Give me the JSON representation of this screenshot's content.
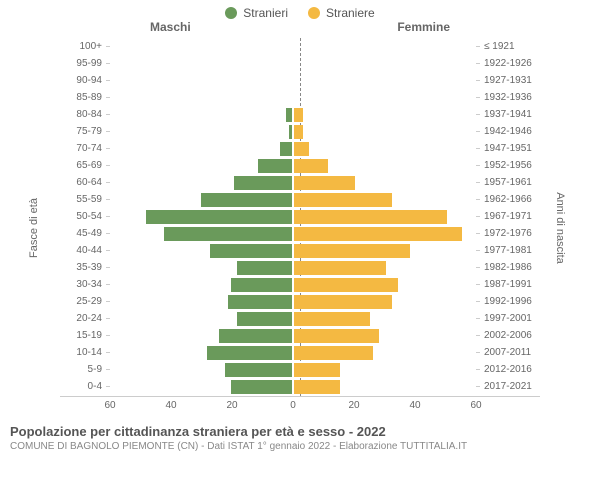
{
  "chart": {
    "type": "population-pyramid",
    "legend": {
      "male": {
        "label": "Stranieri",
        "color": "#6a9a5b"
      },
      "female": {
        "label": "Straniere",
        "color": "#f4b942"
      }
    },
    "column_headers": {
      "left": "Maschi",
      "right": "Femmine"
    },
    "y_label_left": "Fasce di età",
    "y_label_right": "Anni di nascita",
    "x_ticks": [
      60,
      40,
      20,
      0,
      20,
      40,
      60
    ],
    "x_max": 60,
    "bar_outline": "#ffffff",
    "background_color": "#ffffff",
    "center_line_color": "#888888",
    "axis_color": "#cccccc",
    "label_fontsize": 10,
    "tick_label_color": "#666666",
    "rows": [
      {
        "age": "100+",
        "birth": "≤ 1921",
        "m": 0,
        "f": 0
      },
      {
        "age": "95-99",
        "birth": "1922-1926",
        "m": 0,
        "f": 0
      },
      {
        "age": "90-94",
        "birth": "1927-1931",
        "m": 0,
        "f": 0
      },
      {
        "age": "85-89",
        "birth": "1932-1936",
        "m": 0,
        "f": 0
      },
      {
        "age": "80-84",
        "birth": "1937-1941",
        "m": 2,
        "f": 3
      },
      {
        "age": "75-79",
        "birth": "1942-1946",
        "m": 1,
        "f": 3
      },
      {
        "age": "70-74",
        "birth": "1947-1951",
        "m": 4,
        "f": 5
      },
      {
        "age": "65-69",
        "birth": "1952-1956",
        "m": 11,
        "f": 11
      },
      {
        "age": "60-64",
        "birth": "1957-1961",
        "m": 19,
        "f": 20
      },
      {
        "age": "55-59",
        "birth": "1962-1966",
        "m": 30,
        "f": 32
      },
      {
        "age": "50-54",
        "birth": "1967-1971",
        "m": 48,
        "f": 50
      },
      {
        "age": "45-49",
        "birth": "1972-1976",
        "m": 42,
        "f": 55
      },
      {
        "age": "40-44",
        "birth": "1977-1981",
        "m": 27,
        "f": 38
      },
      {
        "age": "35-39",
        "birth": "1982-1986",
        "m": 18,
        "f": 30
      },
      {
        "age": "30-34",
        "birth": "1987-1991",
        "m": 20,
        "f": 34
      },
      {
        "age": "25-29",
        "birth": "1992-1996",
        "m": 21,
        "f": 32
      },
      {
        "age": "20-24",
        "birth": "1997-2001",
        "m": 18,
        "f": 25
      },
      {
        "age": "15-19",
        "birth": "2002-2006",
        "m": 24,
        "f": 28
      },
      {
        "age": "10-14",
        "birth": "2007-2011",
        "m": 28,
        "f": 26
      },
      {
        "age": "5-9",
        "birth": "2012-2016",
        "m": 22,
        "f": 15
      },
      {
        "age": "0-4",
        "birth": "2017-2021",
        "m": 20,
        "f": 15
      }
    ]
  },
  "footer": {
    "title": "Popolazione per cittadinanza straniera per età e sesso - 2022",
    "subtitle": "COMUNE DI BAGNOLO PIEMONTE (CN) - Dati ISTAT 1° gennaio 2022 - Elaborazione TUTTITALIA.IT"
  }
}
